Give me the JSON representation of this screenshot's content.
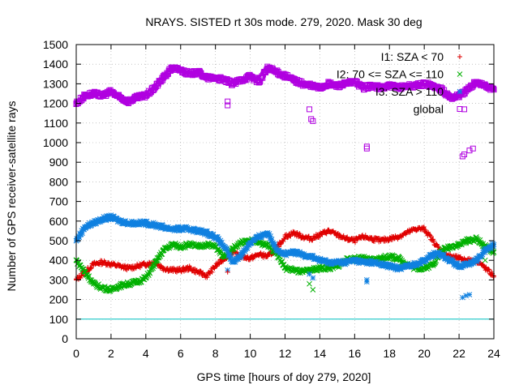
{
  "chart_data": {
    "type": "scatter",
    "title": "NRAYS. SISTED rt 30s mode. 279, 2020. Mask 30 deg",
    "xlabel": "GPS time [hours of doy 279, 2020]",
    "ylabel": "Number of GPS receiver-satellite rays",
    "xlim": [
      0,
      24
    ],
    "ylim": [
      0,
      1500
    ],
    "xticks": [
      "0",
      "2",
      "4",
      "6",
      "8",
      "10",
      "12",
      "14",
      "16",
      "18",
      "20",
      "22",
      "24"
    ],
    "yticks": [
      "0",
      "100",
      "200",
      "300",
      "400",
      "500",
      "600",
      "700",
      "800",
      "900",
      "1000",
      "1100",
      "1200",
      "1300",
      "1400",
      "1500"
    ],
    "grid": true,
    "legend_position": "top-right",
    "reference_line": {
      "y": 100,
      "color": "#00c0c0"
    },
    "series": [
      {
        "name": "I1: SZA < 70",
        "marker": "+",
        "color": "#e00000",
        "x": [
          0,
          0.5,
          1,
          1.5,
          2,
          2.5,
          3,
          3.5,
          4,
          4.5,
          5,
          5.5,
          6,
          6.5,
          7,
          7.5,
          8,
          8.5,
          9,
          9.5,
          10,
          10.5,
          11,
          11.5,
          12,
          12.5,
          13,
          13.5,
          14,
          14.5,
          15,
          15.5,
          16,
          16.5,
          17,
          17.5,
          18,
          18.5,
          19,
          19.5,
          20,
          20.5,
          21,
          21.5,
          22,
          22.5,
          23,
          23.5,
          24
        ],
        "y": [
          300,
          340,
          380,
          390,
          380,
          370,
          360,
          370,
          380,
          390,
          360,
          350,
          350,
          360,
          340,
          320,
          370,
          410,
          440,
          420,
          410,
          430,
          420,
          460,
          520,
          540,
          520,
          510,
          530,
          550,
          530,
          510,
          500,
          520,
          510,
          500,
          510,
          520,
          540,
          560,
          560,
          500,
          440,
          420,
          410,
          400,
          400,
          360,
          320
        ]
      },
      {
        "name": "I2: 70 <= SZA <= 110",
        "marker": "x",
        "color": "#00b000",
        "x": [
          0,
          0.5,
          1,
          1.5,
          2,
          2.5,
          3,
          3.5,
          4,
          4.5,
          5,
          5.5,
          6,
          6.5,
          7,
          7.5,
          8,
          8.5,
          9,
          9.5,
          10,
          10.5,
          11,
          11.5,
          12,
          12.5,
          13,
          13.5,
          14,
          14.5,
          15,
          15.5,
          16,
          16.5,
          17,
          17.5,
          18,
          18.5,
          19,
          19.5,
          20,
          20.5,
          21,
          21.5,
          22,
          22.5,
          23,
          23.5,
          24
        ],
        "y": [
          400,
          340,
          280,
          260,
          250,
          270,
          280,
          290,
          310,
          380,
          450,
          480,
          470,
          480,
          470,
          480,
          470,
          420,
          460,
          490,
          500,
          490,
          480,
          440,
          360,
          350,
          340,
          350,
          360,
          360,
          370,
          400,
          410,
          410,
          400,
          410,
          420,
          410,
          380,
          360,
          360,
          380,
          450,
          470,
          480,
          500,
          510,
          470,
          440
        ]
      },
      {
        "name": "I3: SZA > 110",
        "marker": "*",
        "color": "#1080e0",
        "x": [
          0,
          0.5,
          1,
          1.5,
          2,
          2.5,
          3,
          3.5,
          4,
          4.5,
          5,
          5.5,
          6,
          6.5,
          7,
          7.5,
          8,
          8.5,
          9,
          9.5,
          10,
          10.5,
          11,
          11.5,
          12,
          12.5,
          13,
          13.5,
          14,
          14.5,
          15,
          15.5,
          16,
          16.5,
          17,
          17.5,
          18,
          18.5,
          19,
          19.5,
          20,
          20.5,
          21,
          21.5,
          22,
          22.5,
          23,
          23.5,
          24
        ],
        "y": [
          500,
          570,
          590,
          610,
          620,
          600,
          590,
          590,
          590,
          580,
          570,
          560,
          560,
          560,
          550,
          540,
          520,
          470,
          390,
          430,
          490,
          520,
          540,
          460,
          430,
          440,
          430,
          420,
          400,
          390,
          390,
          390,
          400,
          390,
          390,
          380,
          370,
          360,
          370,
          380,
          400,
          430,
          430,
          400,
          370,
          380,
          400,
          450,
          480
        ]
      },
      {
        "name": "global",
        "marker": "square",
        "color": "#b000e0",
        "x": [
          0,
          0.5,
          1,
          1.5,
          2,
          2.5,
          3,
          3.5,
          4,
          4.5,
          5,
          5.5,
          6,
          6.5,
          7,
          7.5,
          8,
          8.5,
          9,
          9.5,
          10,
          10.5,
          11,
          11.5,
          12,
          12.5,
          13,
          13.5,
          14,
          14.5,
          15,
          15.5,
          16,
          16.5,
          17,
          17.5,
          18,
          18.5,
          19,
          19.5,
          20,
          20.5,
          21,
          21.5,
          22,
          22.5,
          23,
          23.5,
          24
        ],
        "y": [
          1200,
          1240,
          1250,
          1240,
          1260,
          1230,
          1210,
          1230,
          1240,
          1280,
          1330,
          1380,
          1370,
          1350,
          1360,
          1330,
          1330,
          1320,
          1300,
          1320,
          1340,
          1310,
          1380,
          1360,
          1340,
          1320,
          1300,
          1290,
          1280,
          1300,
          1290,
          1300,
          1310,
          1280,
          1290,
          1280,
          1290,
          1280,
          1290,
          1290,
          1300,
          1290,
          1270,
          1230,
          1240,
          1270,
          1310,
          1290,
          1270
        ]
      }
    ],
    "outliers": [
      {
        "series": "global",
        "points": [
          [
            8.7,
            1210
          ],
          [
            8.7,
            1190
          ],
          [
            13.4,
            1170
          ],
          [
            13.5,
            1120
          ],
          [
            13.6,
            1110
          ],
          [
            16.7,
            980
          ],
          [
            16.7,
            970
          ],
          [
            22.2,
            930
          ],
          [
            22.3,
            940
          ],
          [
            22.6,
            960
          ],
          [
            22.8,
            970
          ],
          [
            22.3,
            1170
          ]
        ]
      },
      {
        "series": "I2: 70 <= SZA <= 110",
        "points": [
          [
            13.4,
            280
          ],
          [
            13.6,
            250
          ],
          [
            23.5,
            400
          ]
        ]
      },
      {
        "series": "I3: SZA > 110",
        "points": [
          [
            8.7,
            350
          ],
          [
            13.4,
            330
          ],
          [
            13.6,
            310
          ],
          [
            16.7,
            300
          ],
          [
            16.7,
            290
          ],
          [
            22.2,
            210
          ],
          [
            22.4,
            220
          ],
          [
            22.6,
            225
          ]
        ]
      },
      {
        "series": "I1: SZA < 70",
        "points": [
          [
            8.7,
            340
          ]
        ]
      }
    ],
    "legend_entries": [
      "I1: SZA < 70",
      "I2: 70 <= SZA <= 110",
      "I3: SZA > 110",
      "global"
    ]
  }
}
